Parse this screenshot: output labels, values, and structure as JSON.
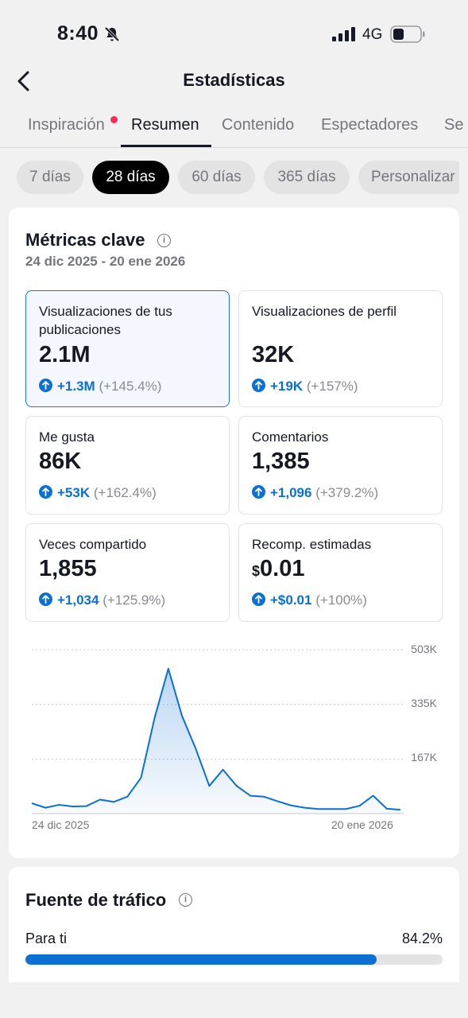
{
  "status_bar": {
    "time": "8:40",
    "network": "4G",
    "icons": [
      "bell-muted-icon",
      "signal-icon",
      "battery-icon"
    ]
  },
  "header": {
    "title": "Estadísticas",
    "back_icon": "chevron-left-icon"
  },
  "tabs": [
    {
      "label": "Inspiración",
      "badge": true
    },
    {
      "label": "Resumen",
      "active": true
    },
    {
      "label": "Contenido"
    },
    {
      "label": "Espectadores"
    },
    {
      "label": "Se"
    }
  ],
  "ranges": [
    {
      "label": "7 días"
    },
    {
      "label": "28 días",
      "active": true
    },
    {
      "label": "60 días"
    },
    {
      "label": "365 días"
    },
    {
      "label": "Personalizar"
    }
  ],
  "metrics": {
    "title": "Métricas clave",
    "info_icon": "info-icon",
    "date_range": "24 dic 2025 - 20 ene 2026",
    "tiles": [
      {
        "label": "Visualizaciones de tus publicaciones",
        "value": "2.1M",
        "delta": "+1.3M",
        "pct": "(+145.4%)",
        "selected": true
      },
      {
        "label": "Visualizaciones de perfil",
        "value": "32K",
        "delta": "+19K",
        "pct": "(+157%)"
      },
      {
        "label": "Me gusta",
        "value": "86K",
        "delta": "+53K",
        "pct": "(+162.4%)"
      },
      {
        "label": "Comentarios",
        "value": "1,385",
        "delta": "+1,096",
        "pct": "(+379.2%)"
      },
      {
        "label": "Veces compartido",
        "value": "1,855",
        "delta": "+1,034",
        "pct": "(+125.9%)"
      },
      {
        "label": "Recomp. estimadas",
        "currency": "$",
        "value": "0.01",
        "delta": "+$0.01",
        "pct": "(+100%)"
      }
    ]
  },
  "chart_data": {
    "type": "area",
    "x_start_label": "24 dic 2025",
    "x_end_label": "20 ene 2026",
    "y_tick_labels": [
      "503K",
      "335K",
      "167K"
    ],
    "y_ticks": [
      503000,
      335000,
      167000
    ],
    "ylim": [
      0,
      503000
    ],
    "grid": true,
    "color": "#0b6fd4",
    "values": [
      32000,
      18000,
      27000,
      22000,
      23000,
      43000,
      36000,
      52000,
      110000,
      295000,
      445000,
      300000,
      200000,
      85000,
      135000,
      85000,
      55000,
      52000,
      38000,
      25000,
      18000,
      14000,
      14000,
      14000,
      24000,
      55000,
      15000,
      12000
    ]
  },
  "traffic": {
    "title": "Fuente de tráfico",
    "info_icon": "info-icon",
    "rows": [
      {
        "label": "Para ti",
        "value": "84.2%",
        "fraction": 0.842
      }
    ]
  }
}
